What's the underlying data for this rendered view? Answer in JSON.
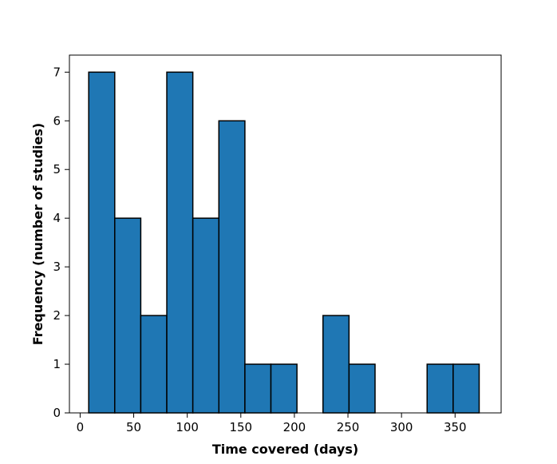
{
  "chart_data": {
    "type": "bar",
    "title": "",
    "xlabel": "Time covered (days)",
    "ylabel": "Frequency (number of studies)",
    "xlim": [
      -10,
      393
    ],
    "ylim": [
      0,
      7.35
    ],
    "xticks": [
      0,
      50,
      100,
      150,
      200,
      250,
      300,
      350
    ],
    "yticks": [
      0,
      1,
      2,
      3,
      4,
      5,
      6,
      7
    ],
    "bins": [
      {
        "x0": 8.0,
        "x1": 32.3,
        "value": 7
      },
      {
        "x0": 32.3,
        "x1": 56.6,
        "value": 4
      },
      {
        "x0": 56.6,
        "x1": 80.9,
        "value": 2
      },
      {
        "x0": 80.9,
        "x1": 105.2,
        "value": 7
      },
      {
        "x0": 105.2,
        "x1": 129.5,
        "value": 4
      },
      {
        "x0": 129.5,
        "x1": 153.8,
        "value": 6
      },
      {
        "x0": 153.8,
        "x1": 178.1,
        "value": 1
      },
      {
        "x0": 178.1,
        "x1": 202.4,
        "value": 1
      },
      {
        "x0": 202.4,
        "x1": 226.7,
        "value": 0
      },
      {
        "x0": 226.7,
        "x1": 251.0,
        "value": 2
      },
      {
        "x0": 251.0,
        "x1": 275.3,
        "value": 1
      },
      {
        "x0": 275.3,
        "x1": 299.6,
        "value": 0
      },
      {
        "x0": 299.6,
        "x1": 323.9,
        "value": 0
      },
      {
        "x0": 323.9,
        "x1": 348.2,
        "value": 1
      },
      {
        "x0": 348.2,
        "x1": 372.5,
        "value": 1
      }
    ],
    "grid": false,
    "bar_color": "#1f77b4",
    "edge_color": "#000000"
  }
}
